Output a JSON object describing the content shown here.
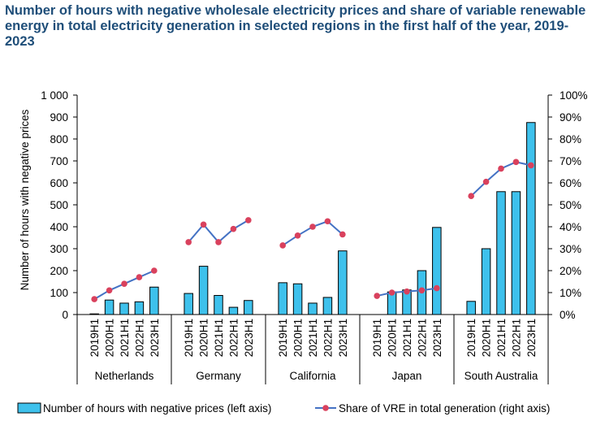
{
  "chart_data": {
    "type": "bar",
    "title": "Number of hours with negative wholesale electricity prices and share of variable renewable energy in total electricity generation in selected regions in the first half of the year, 2019-2023",
    "ylabel": "Number of hours with negative prices",
    "ylim": [
      0,
      1000
    ],
    "y2lim": [
      0,
      100
    ],
    "y_ticks": [
      "0",
      "100",
      "200",
      "300",
      "400",
      "500",
      "600",
      "700",
      "800",
      "900",
      "1 000"
    ],
    "y2_ticks": [
      "0%",
      "10%",
      "20%",
      "30%",
      "40%",
      "50%",
      "60%",
      "70%",
      "80%",
      "90%",
      "100%"
    ],
    "periods": [
      "2019H1",
      "2020H1",
      "2021H1",
      "2022H1",
      "2023H1"
    ],
    "regions": [
      {
        "name": "Netherlands",
        "hours": [
          3,
          66,
          52,
          58,
          125
        ],
        "vre": [
          7,
          11,
          14,
          17,
          20
        ]
      },
      {
        "name": "Germany",
        "hours": [
          96,
          220,
          87,
          33,
          64
        ],
        "vre": [
          33,
          41,
          33,
          39,
          43
        ]
      },
      {
        "name": "California",
        "hours": [
          145,
          140,
          52,
          78,
          290
        ],
        "vre": [
          31.5,
          36,
          40,
          42.5,
          36.5
        ]
      },
      {
        "name": "Japan",
        "hours": [
          0,
          103,
          112,
          200,
          397
        ],
        "vre": [
          8.5,
          10,
          10.5,
          11,
          12
        ]
      },
      {
        "name": "South Australia",
        "hours": [
          60,
          300,
          560,
          560,
          875
        ],
        "vre": [
          54,
          60.5,
          66.5,
          69.5,
          68
        ]
      }
    ],
    "series": [
      {
        "name": "Number of hours with negative prices (left axis)",
        "kind": "bar",
        "axis": "left",
        "color": "#3ec1ec"
      },
      {
        "name": "Share of VRE in total generation (right axis)",
        "kind": "line",
        "axis": "right",
        "color": "#4472c4",
        "marker_color": "#d9415d"
      }
    ],
    "legend_position": "bottom",
    "grid": false
  },
  "colors": {
    "title": "#1f4e79",
    "bar_fill": "#3ec1ec",
    "bar_stroke": "#000000",
    "line": "#4472c4",
    "marker": "#d9415d"
  }
}
